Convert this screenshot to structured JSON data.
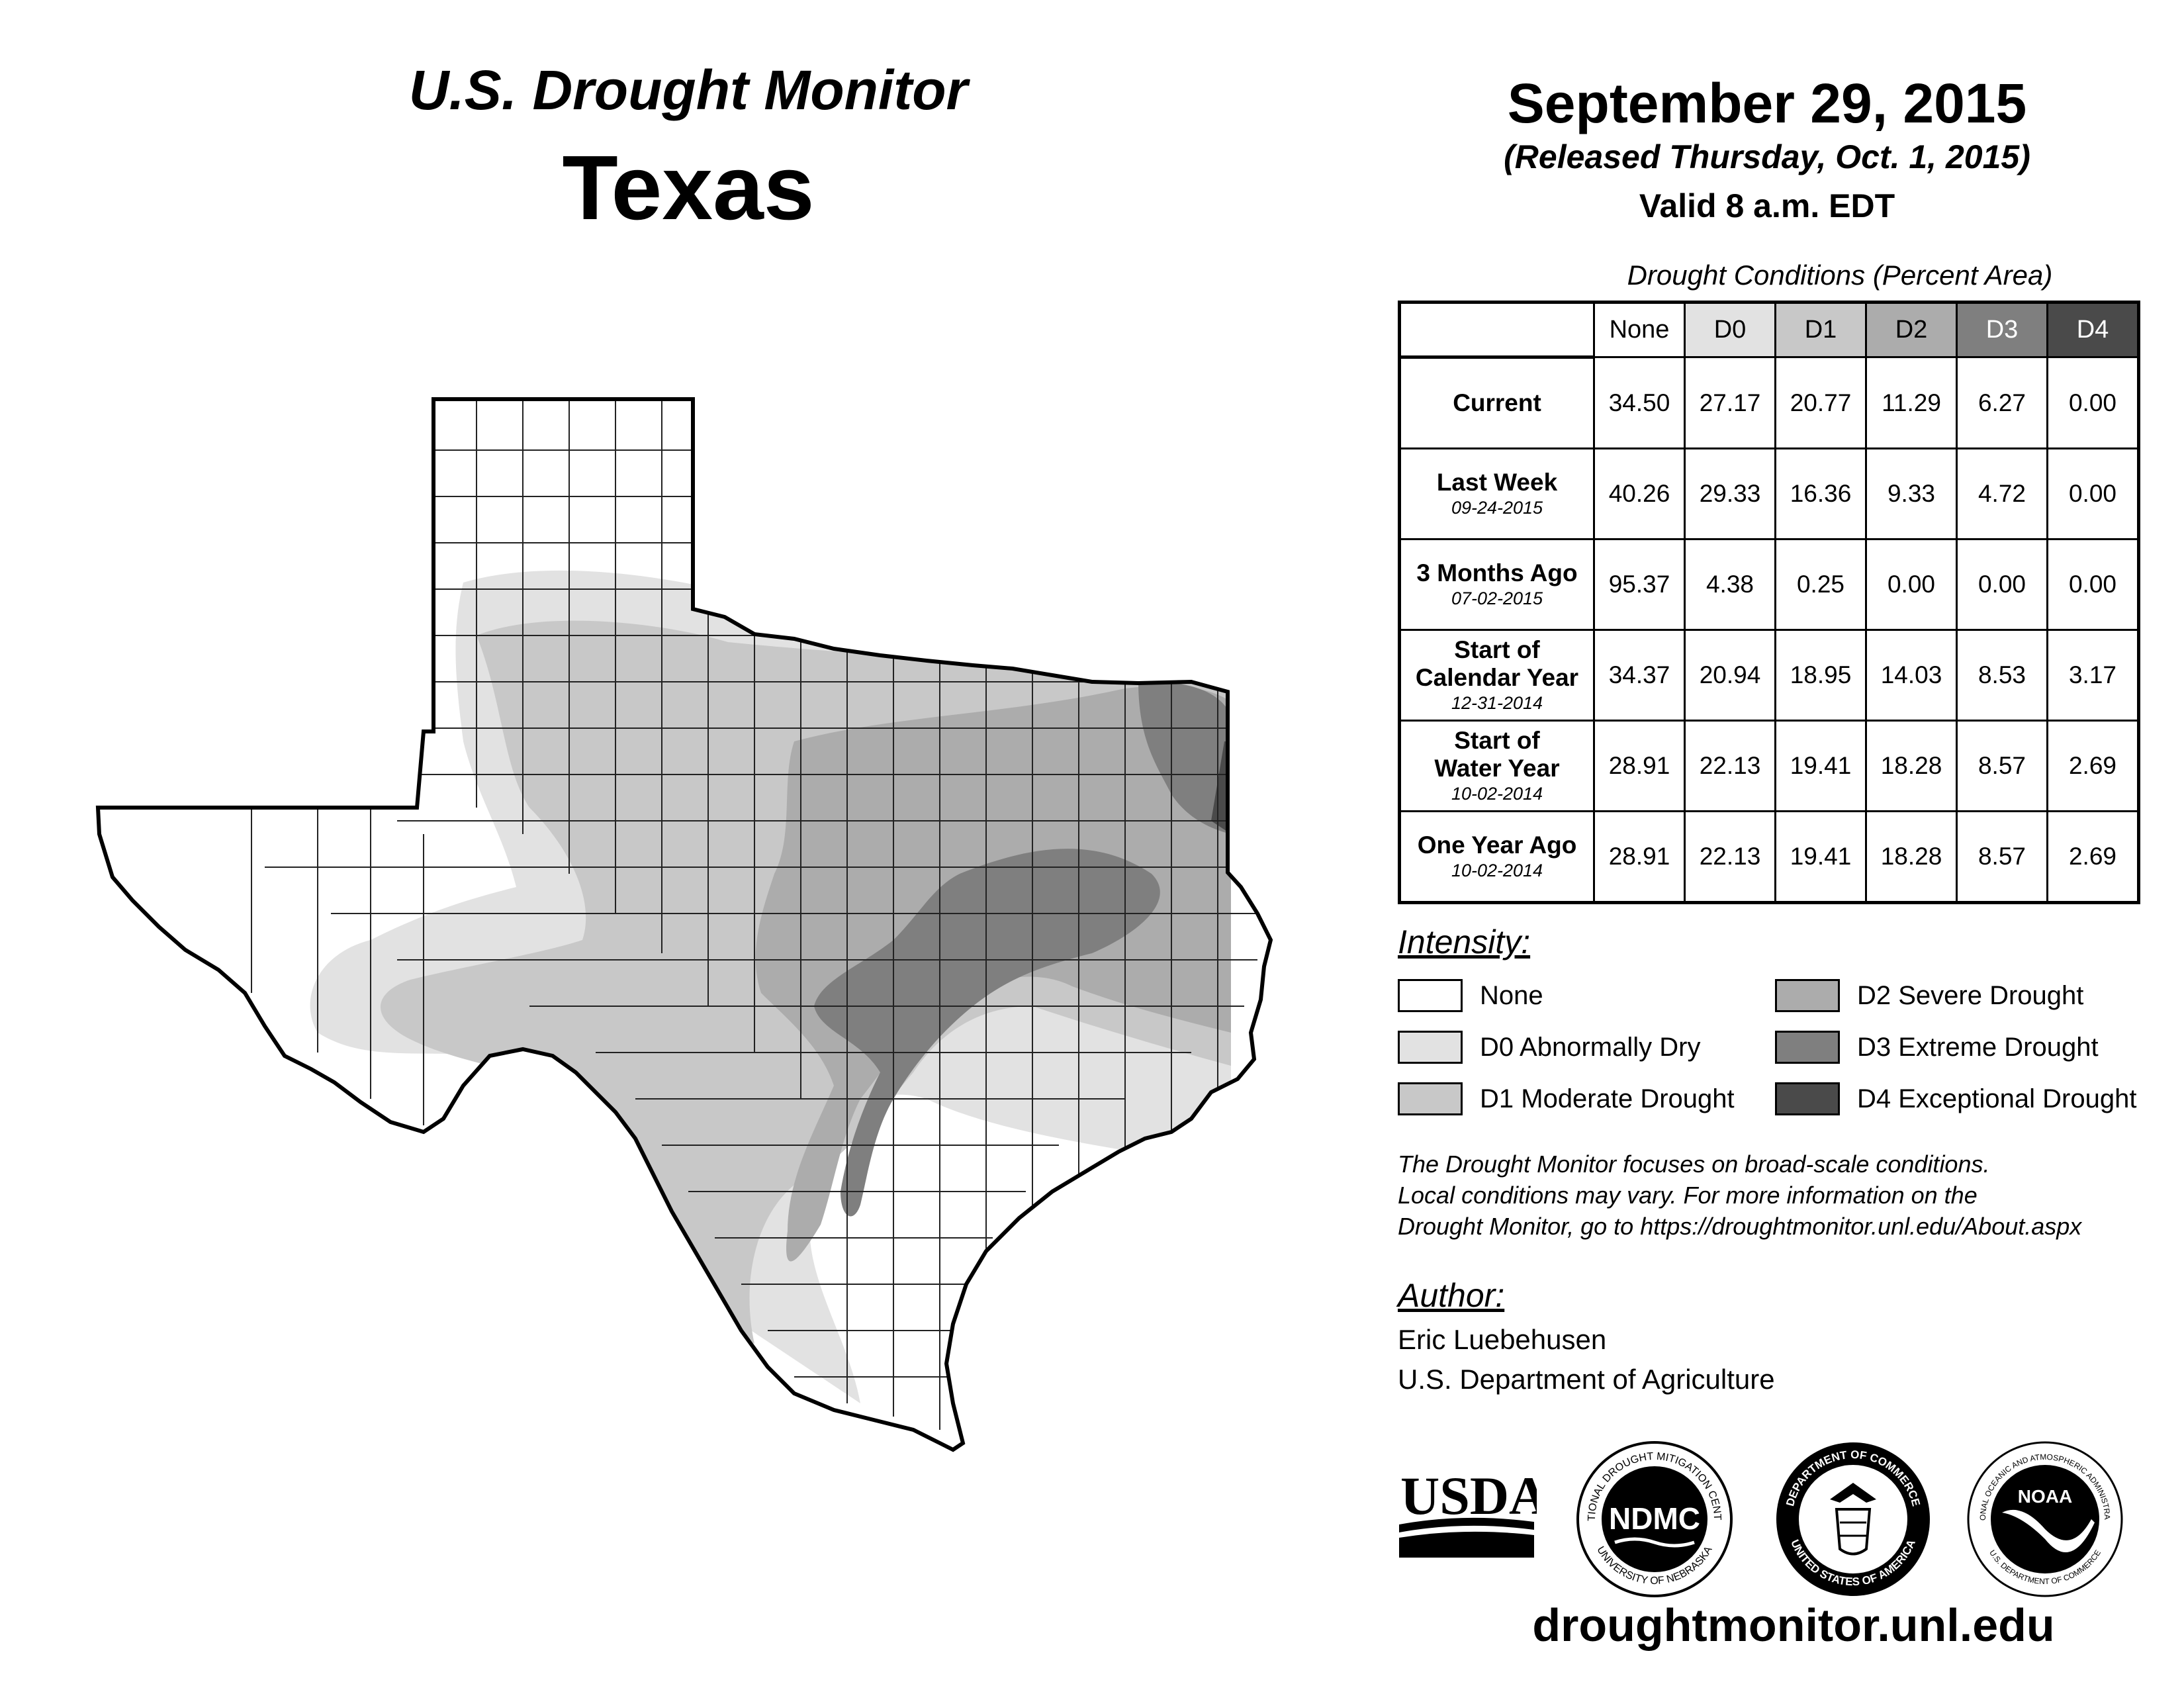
{
  "header": {
    "title_line1": "U.S. Drought Monitor",
    "title_line2": "Texas",
    "date": "September 29, 2015",
    "released": "(Released Thursday, Oct. 1, 2015)",
    "valid": "Valid 8 a.m. EDT"
  },
  "table": {
    "caption": "Drought Conditions (Percent Area)",
    "columns": [
      "None",
      "D0",
      "D1",
      "D2",
      "D3",
      "D4"
    ],
    "rows": [
      {
        "label": "Current",
        "date": "",
        "values": [
          "34.50",
          "27.17",
          "20.77",
          "11.29",
          "6.27",
          "0.00"
        ]
      },
      {
        "label": "Last Week",
        "date": "09-24-2015",
        "values": [
          "40.26",
          "29.33",
          "16.36",
          "9.33",
          "4.72",
          "0.00"
        ]
      },
      {
        "label": "3 Months Ago",
        "date": "07-02-2015",
        "values": [
          "95.37",
          "4.38",
          "0.25",
          "0.00",
          "0.00",
          "0.00"
        ]
      },
      {
        "label": "Start of Calendar Year",
        "date": "12-31-2014",
        "values": [
          "34.37",
          "20.94",
          "18.95",
          "14.03",
          "8.53",
          "3.17"
        ]
      },
      {
        "label": "Start of Water Year",
        "date": "10-02-2014",
        "values": [
          "28.91",
          "22.13",
          "19.41",
          "18.28",
          "8.57",
          "2.69"
        ]
      },
      {
        "label": "One Year Ago",
        "date": "10-02-2014",
        "values": [
          "28.91",
          "22.13",
          "19.41",
          "18.28",
          "8.57",
          "2.69"
        ]
      }
    ]
  },
  "legend": {
    "title": "Intensity:",
    "items": [
      {
        "label": "None",
        "color": "#ffffff"
      },
      {
        "label": "D0 Abnormally Dry",
        "color": "#e2e2e2"
      },
      {
        "label": "D1 Moderate Drought",
        "color": "#c8c8c8"
      },
      {
        "label": "D2 Severe Drought",
        "color": "#acacac"
      },
      {
        "label": "D3 Extreme Drought",
        "color": "#7f7f7f"
      },
      {
        "label": "D4 Exceptional Drought",
        "color": "#4a4a4a"
      }
    ]
  },
  "note": {
    "line1": "The Drought Monitor focuses on broad-scale conditions.",
    "line2": "Local conditions may vary. For more information on the",
    "line3": "Drought Monitor, go to https://droughtmonitor.unl.edu/About.aspx"
  },
  "author": {
    "title": "Author:",
    "name": "Eric Luebehusen",
    "org": "U.S. Department of Agriculture"
  },
  "logos": {
    "usda": "USDA",
    "ndmc": "NDMC",
    "ndmc_ring_top": "NATIONAL DROUGHT MITIGATION CENTER",
    "ndmc_ring_bottom": "UNIVERSITY OF NEBRASKA",
    "doc_ring_top": "DEPARTMENT OF COMMERCE",
    "doc_ring_bottom": "UNITED STATES OF AMERICA",
    "noaa": "NOAA",
    "noaa_ring_top": "NATIONAL OCEANIC AND ATMOSPHERIC ADMINISTRATION",
    "noaa_ring_bottom": "U.S. DEPARTMENT OF COMMERCE"
  },
  "site": "droughtmonitor.unl.edu"
}
